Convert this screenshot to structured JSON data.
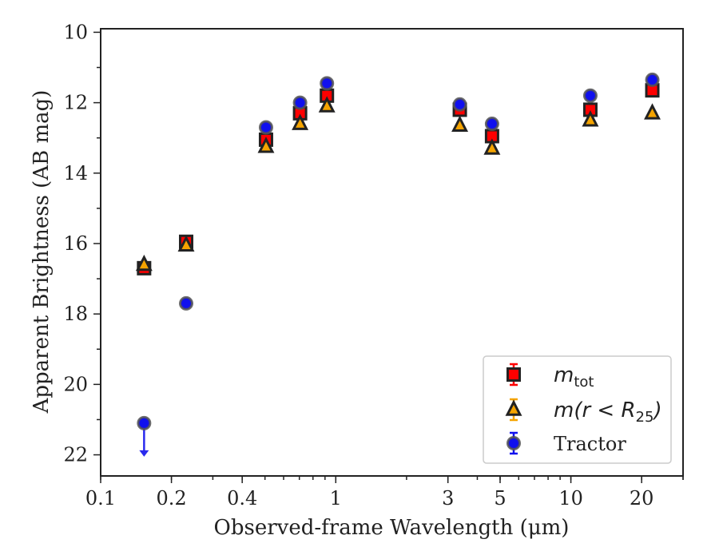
{
  "chart_data": {
    "type": "scatter",
    "xlabel": "Observed-frame Wavelength (μm)",
    "ylabel": "Apparent Brightness (AB mag)",
    "xscale": "log",
    "xlim": [
      0.1,
      30
    ],
    "ylim": [
      22.6,
      9.9
    ],
    "y_inverted": true,
    "xtick_labels": [
      {
        "value": 0.1,
        "label": "0.1"
      },
      {
        "value": 0.2,
        "label": "0.2"
      },
      {
        "value": 0.4,
        "label": "0.4"
      },
      {
        "value": 1,
        "label": "1"
      },
      {
        "value": 3,
        "label": "3"
      },
      {
        "value": 5,
        "label": "5"
      },
      {
        "value": 10,
        "label": "10"
      },
      {
        "value": 20,
        "label": "20"
      }
    ],
    "ytick_labels": [
      {
        "value": 10,
        "label": "10"
      },
      {
        "value": 12,
        "label": "12"
      },
      {
        "value": 14,
        "label": "14"
      },
      {
        "value": 16,
        "label": "16"
      },
      {
        "value": 18,
        "label": "18"
      },
      {
        "value": 20,
        "label": "20"
      },
      {
        "value": 22,
        "label": "22"
      }
    ],
    "legend": {
      "position": "lower right",
      "entries": [
        {
          "label_main": "m",
          "label_sub": "tot",
          "label_paren": ""
        },
        {
          "label_main": "m(r < R",
          "label_sub": "25",
          "label_paren": ")"
        },
        {
          "label_main": "Tractor",
          "label_sub": "",
          "label_paren": ""
        }
      ]
    },
    "series": [
      {
        "marker": "square",
        "color": "#ff0000",
        "edge": "#222222",
        "points": [
          {
            "x": 0.153,
            "y": 16.7
          },
          {
            "x": 0.231,
            "y": 15.95
          },
          {
            "x": 0.505,
            "y": 13.05
          },
          {
            "x": 0.705,
            "y": 12.3
          },
          {
            "x": 0.917,
            "y": 11.8
          },
          {
            "x": 3.37,
            "y": 12.2
          },
          {
            "x": 4.62,
            "y": 12.95
          },
          {
            "x": 12.1,
            "y": 12.2
          },
          {
            "x": 22.2,
            "y": 11.65
          }
        ]
      },
      {
        "marker": "triangle",
        "color": "#f5a400",
        "edge": "#222222",
        "points": [
          {
            "x": 0.153,
            "y": 16.6
          },
          {
            "x": 0.231,
            "y": 16.05
          },
          {
            "x": 0.505,
            "y": 13.25
          },
          {
            "x": 0.705,
            "y": 12.6
          },
          {
            "x": 0.917,
            "y": 12.1
          },
          {
            "x": 3.37,
            "y": 12.65
          },
          {
            "x": 4.62,
            "y": 13.3
          },
          {
            "x": 12.1,
            "y": 12.5
          },
          {
            "x": 22.2,
            "y": 12.3
          }
        ]
      },
      {
        "marker": "circle",
        "color": "#1010ee",
        "edge": "#555555",
        "upper_limit_color": "#2a2aee",
        "points": [
          {
            "x": 0.153,
            "y": 21.1,
            "upper_limit": true
          },
          {
            "x": 0.231,
            "y": 17.7
          },
          {
            "x": 0.505,
            "y": 12.7
          },
          {
            "x": 0.705,
            "y": 12.0
          },
          {
            "x": 0.917,
            "y": 11.45
          },
          {
            "x": 3.37,
            "y": 12.05
          },
          {
            "x": 4.62,
            "y": 12.6
          },
          {
            "x": 12.1,
            "y": 11.8
          },
          {
            "x": 22.2,
            "y": 11.35
          }
        ]
      }
    ]
  }
}
